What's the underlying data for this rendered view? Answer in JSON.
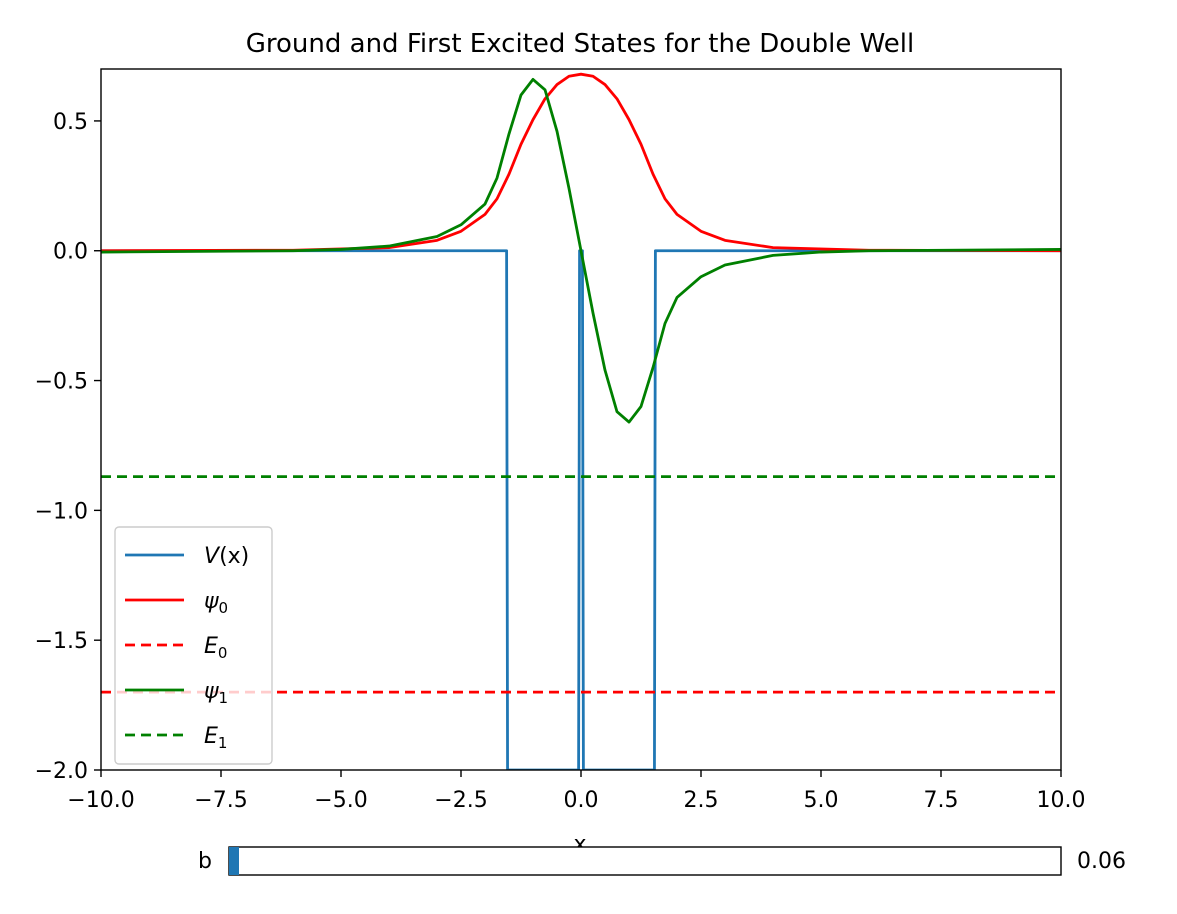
{
  "chart_data": {
    "type": "line",
    "title": "Ground and First Excited States for the Double Well",
    "xlabel": "x",
    "ylabel": "",
    "xlim": [
      -10,
      10
    ],
    "ylim": [
      -2.0,
      0.7
    ],
    "grid": false,
    "legend_position": "lower-left",
    "x_ticks": [
      -10,
      -7.5,
      -5,
      -2.5,
      0,
      2.5,
      5,
      7.5,
      10
    ],
    "x_tick_labels": [
      "−10.0",
      "−7.5",
      "−5.0",
      "−2.5",
      "0.0",
      "2.5",
      "5.0",
      "7.5",
      "10.0"
    ],
    "y_ticks": [
      0.5,
      0.0,
      -0.5,
      -1.0,
      -1.5,
      -2.0
    ],
    "y_tick_labels": [
      "0.5",
      "0.0",
      "−0.5",
      "−1.0",
      "−1.5",
      "−2.0"
    ],
    "series": [
      {
        "name": "V(x)",
        "legend_main": "V",
        "legend_rest": "(x)",
        "legend_sub": "",
        "color": "#1f77b4",
        "style": "solid",
        "x": [
          -10,
          -1.55,
          -1.53,
          -0.05,
          -0.03,
          0.03,
          0.05,
          1.53,
          1.55,
          10
        ],
        "y": [
          0,
          0,
          -2,
          -2,
          0,
          0,
          -2,
          -2,
          0,
          0
        ]
      },
      {
        "name": "ψ0",
        "legend_main": "ψ",
        "legend_rest": "",
        "legend_sub": "0",
        "color": "#ff0000",
        "style": "solid",
        "x": [
          -10,
          -6,
          -4,
          -3,
          -2.5,
          -2,
          -1.75,
          -1.5,
          -1.25,
          -1,
          -0.75,
          -0.5,
          -0.25,
          0,
          0.25,
          0.5,
          0.75,
          1,
          1.25,
          1.5,
          1.75,
          2,
          2.5,
          3,
          4,
          6,
          10
        ],
        "y": [
          0,
          0.002,
          0.012,
          0.04,
          0.075,
          0.14,
          0.2,
          0.295,
          0.41,
          0.505,
          0.585,
          0.64,
          0.672,
          0.68,
          0.672,
          0.64,
          0.585,
          0.505,
          0.41,
          0.295,
          0.2,
          0.14,
          0.075,
          0.04,
          0.012,
          0.002,
          0
        ]
      },
      {
        "name": "E0",
        "legend_main": "E",
        "legend_rest": "",
        "legend_sub": "0",
        "color": "#ff0000",
        "style": "dashed",
        "x": [
          -10,
          10
        ],
        "y": [
          -1.7,
          -1.7
        ]
      },
      {
        "name": "ψ1",
        "legend_main": "ψ",
        "legend_rest": "",
        "legend_sub": "1",
        "color": "#008000",
        "style": "solid",
        "x": [
          -10,
          -6,
          -5,
          -4,
          -3,
          -2.5,
          -2,
          -1.75,
          -1.5,
          -1.25,
          -1,
          -0.75,
          -0.5,
          -0.25,
          0,
          0.25,
          0.5,
          0.75,
          1,
          1.25,
          1.5,
          1.75,
          2,
          2.5,
          3,
          4,
          5,
          6,
          10
        ],
        "y": [
          -0.005,
          0,
          0.005,
          0.018,
          0.055,
          0.1,
          0.18,
          0.28,
          0.45,
          0.6,
          0.66,
          0.62,
          0.46,
          0.24,
          0,
          -0.24,
          -0.46,
          -0.62,
          -0.66,
          -0.6,
          -0.45,
          -0.28,
          -0.18,
          -0.1,
          -0.055,
          -0.018,
          -0.005,
          0,
          0.005
        ]
      },
      {
        "name": "E1",
        "legend_main": "E",
        "legend_rest": "",
        "legend_sub": "1",
        "color": "#008000",
        "style": "dashed",
        "x": [
          -10,
          10
        ],
        "y": [
          -0.87,
          -0.87
        ]
      }
    ]
  },
  "slider": {
    "label": "b",
    "value": 0.06,
    "value_text": "0.06",
    "min": 0,
    "max": 5,
    "color": "#1f77b4"
  }
}
